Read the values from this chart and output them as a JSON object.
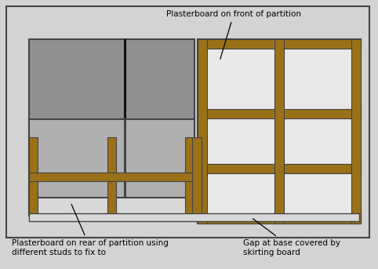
{
  "bg_color": "#d3d3d3",
  "border_color": "#444444",
  "stud_color": "#9a7118",
  "plaster_dark_top": "#909090",
  "plaster_mid": "#b0b0b0",
  "plaster_light": "#d8d8d8",
  "frame_bg": "#e8e8e8",
  "black_line": "#111111",
  "label_front": "Plasterboard on front of partition",
  "label_rear": "Plasterboard on rear of partition using\ndifferent studs to fix to",
  "label_gap": "Gap at base covered by\nskirting board",
  "fig_width": 4.82,
  "fig_height": 3.43,
  "dpi": 100
}
